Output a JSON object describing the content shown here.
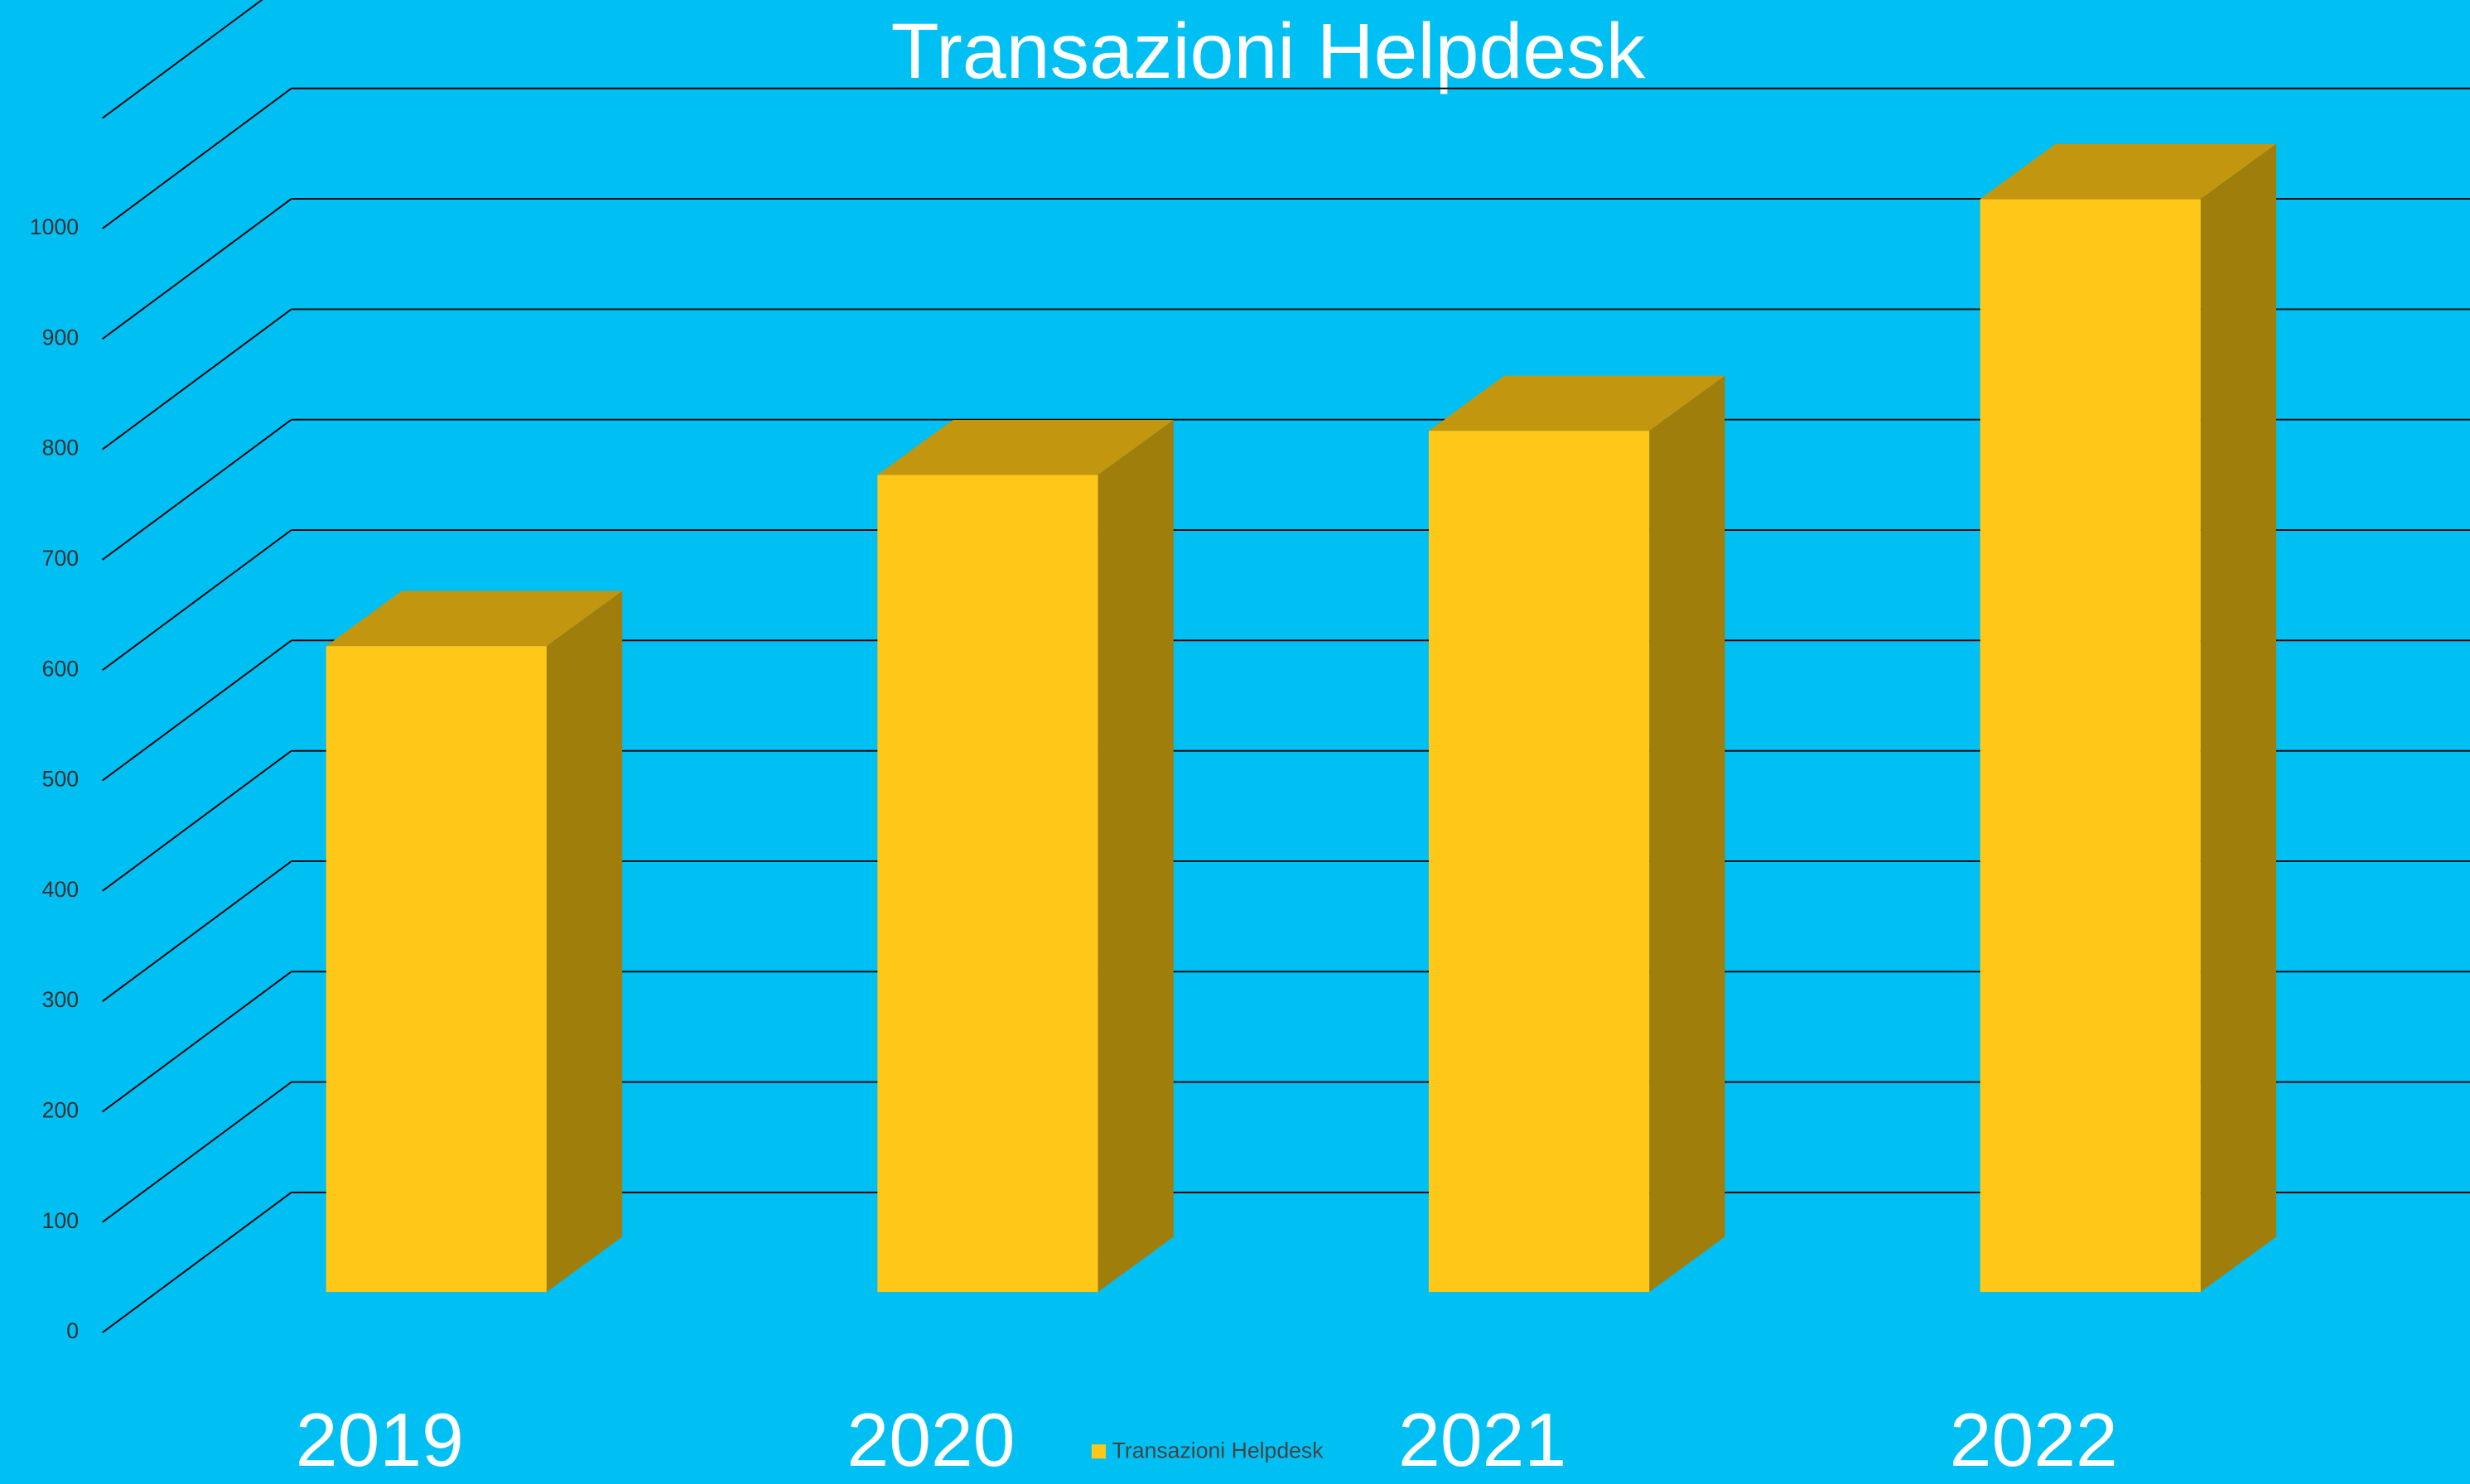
{
  "chart_data": {
    "type": "bar3d",
    "title": "Transazioni Helpdesk",
    "categories": [
      "2019",
      "2020",
      "2021",
      "2022"
    ],
    "series": [
      {
        "name": "Transazioni Helpdesk",
        "color": "#FFC717",
        "values": [
          585,
          740,
          780,
          990
        ]
      }
    ],
    "ylim": [
      0,
      1100
    ],
    "yticks": [
      0,
      100,
      200,
      300,
      400,
      500,
      600,
      700,
      800,
      900,
      1000
    ],
    "grid": true,
    "legend": "bottom"
  }
}
